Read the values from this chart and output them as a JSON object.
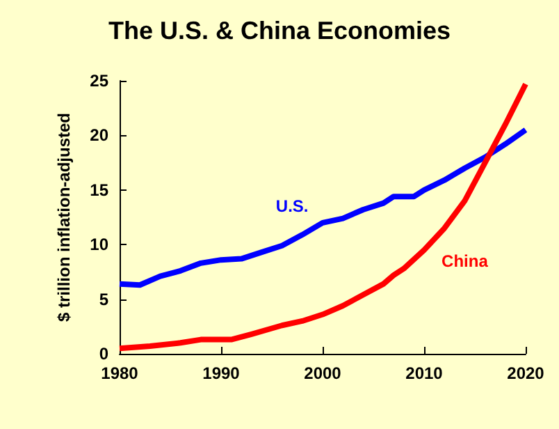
{
  "chart_data": {
    "type": "line",
    "title": "The U.S. & China Economies",
    "ylabel": "$ trillion inflation-adjusted",
    "xlim": [
      1980,
      2020
    ],
    "xticks": [
      1980,
      1990,
      2000,
      2010,
      2020
    ],
    "ylim": [
      0,
      25
    ],
    "yticks": [
      0,
      5,
      10,
      15,
      20,
      25
    ],
    "grid": false,
    "legend": false,
    "marker": "none",
    "series": [
      {
        "name": "U.S.",
        "color": "#0000ff",
        "x": [
          1980,
          1982,
          1984,
          1986,
          1988,
          1990,
          1992,
          1994,
          1996,
          1998,
          2000,
          2002,
          2004,
          2006,
          2007,
          2009,
          2010,
          2012,
          2014,
          2016,
          2018,
          2020
        ],
        "values": [
          6.4,
          6.3,
          7.1,
          7.6,
          8.3,
          8.6,
          8.7,
          9.3,
          9.9,
          10.9,
          12.0,
          12.4,
          13.2,
          13.8,
          14.4,
          14.4,
          15.0,
          15.9,
          17.0,
          18.0,
          19.2,
          20.5
        ]
      },
      {
        "name": "China",
        "color": "#ff0000",
        "x": [
          1980,
          1983,
          1986,
          1988,
          1991,
          1993,
          1996,
          1998,
          2000,
          2002,
          2004,
          2006,
          2007,
          2008,
          2010,
          2012,
          2014,
          2016,
          2018,
          2020
        ],
        "values": [
          0.5,
          0.7,
          1.0,
          1.3,
          1.3,
          1.8,
          2.6,
          3.0,
          3.6,
          4.4,
          5.4,
          6.4,
          7.2,
          7.8,
          9.5,
          11.5,
          14.0,
          17.5,
          21.0,
          24.7
        ]
      }
    ]
  }
}
